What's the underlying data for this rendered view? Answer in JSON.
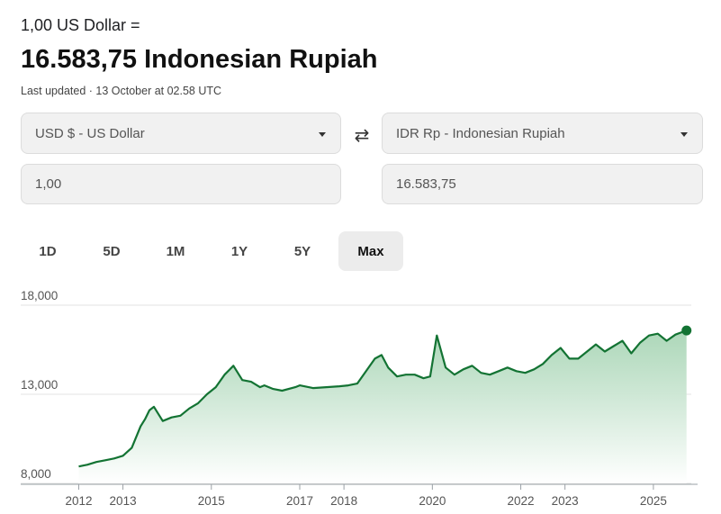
{
  "conversion": {
    "base_line": "1,00 US Dollar =",
    "result_line": "16.583,75 Indonesian Rupiah",
    "last_updated": "Last updated · 13 October at 02.58 UTC"
  },
  "from_currency": {
    "label": "USD $ - US Dollar",
    "amount": "1,00"
  },
  "to_currency": {
    "label": "IDR Rp - Indonesian Rupiah",
    "amount": "16.583,75"
  },
  "range_tabs": [
    {
      "label": "1D",
      "active": false
    },
    {
      "label": "5D",
      "active": false
    },
    {
      "label": "1M",
      "active": false
    },
    {
      "label": "1Y",
      "active": false
    },
    {
      "label": "5Y",
      "active": false
    },
    {
      "label": "Max",
      "active": true
    }
  ],
  "icons": {
    "swap": "swap-arrows-icon",
    "dropdown": "chevron-down-icon"
  },
  "colors": {
    "line": "#137333",
    "area_top": "#a8d5b5",
    "accent": "#137333"
  },
  "chart_data": {
    "type": "area",
    "title": "",
    "xlabel": "",
    "ylabel": "",
    "ylim": [
      8000,
      18000
    ],
    "xlim": [
      2011.4,
      2026.0
    ],
    "y_ticks": [
      "18,000",
      "13,000",
      "8,000"
    ],
    "x_ticks": [
      "2012",
      "2013",
      "2015",
      "2017",
      "2018",
      "2020",
      "2022",
      "2023",
      "2025"
    ],
    "grid": true,
    "series": [
      {
        "name": "",
        "x": [
          2012.0,
          2012.2,
          2012.4,
          2012.6,
          2012.8,
          2013.0,
          2013.2,
          2013.4,
          2013.5,
          2013.6,
          2013.7,
          2013.9,
          2014.1,
          2014.3,
          2014.5,
          2014.7,
          2014.9,
          2015.1,
          2015.3,
          2015.5,
          2015.7,
          2015.9,
          2016.1,
          2016.2,
          2016.4,
          2016.6,
          2016.9,
          2017.0,
          2017.3,
          2017.6,
          2017.9,
          2018.1,
          2018.3,
          2018.5,
          2018.7,
          2018.85,
          2019.0,
          2019.2,
          2019.4,
          2019.6,
          2019.8,
          2019.95,
          2020.1,
          2020.3,
          2020.5,
          2020.7,
          2020.9,
          2021.1,
          2021.3,
          2021.5,
          2021.7,
          2021.9,
          2022.1,
          2022.3,
          2022.5,
          2022.7,
          2022.9,
          2023.1,
          2023.3,
          2023.5,
          2023.7,
          2023.9,
          2024.1,
          2024.3,
          2024.5,
          2024.7,
          2024.9,
          2025.1,
          2025.3,
          2025.5,
          2025.75
        ],
        "values": [
          8950,
          9050,
          9200,
          9300,
          9400,
          9550,
          10000,
          11200,
          11600,
          12100,
          12300,
          11500,
          11700,
          11800,
          12200,
          12500,
          13000,
          13400,
          14100,
          14600,
          13800,
          13700,
          13400,
          13500,
          13300,
          13200,
          13400,
          13500,
          13350,
          13400,
          13450,
          13500,
          13600,
          14300,
          15000,
          15200,
          14500,
          14000,
          14100,
          14100,
          13900,
          14000,
          16300,
          14500,
          14100,
          14400,
          14600,
          14200,
          14100,
          14300,
          14500,
          14300,
          14200,
          14400,
          14700,
          15200,
          15600,
          15000,
          15000,
          15400,
          15800,
          15400,
          15700,
          16000,
          15300,
          15900,
          16300,
          16400,
          16000,
          16350,
          16580
        ]
      }
    ]
  }
}
